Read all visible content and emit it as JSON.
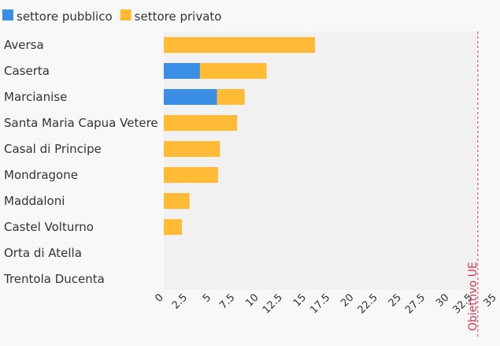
{
  "chart_data": {
    "type": "bar",
    "stacked": true,
    "orientation": "horizontal",
    "categories": [
      "Aversa",
      "Caserta",
      "Marcianise",
      "Santa Maria Capua Vetere",
      "Casal di Principe",
      "Mondragone",
      "Maddaloni",
      "Castel Volturno",
      "Orta di Atella",
      "Trentola Ducenta"
    ],
    "series": [
      {
        "name": "settore pubblico",
        "color": "#3a8ee6",
        "values": [
          0,
          3.8,
          5.6,
          0,
          0,
          0,
          0,
          0,
          0,
          0
        ]
      },
      {
        "name": "settore privato",
        "color": "#ffbb36",
        "values": [
          15.9,
          7.0,
          2.9,
          7.7,
          5.9,
          5.7,
          2.7,
          1.9,
          0,
          0
        ]
      }
    ],
    "xlim": [
      0,
      35
    ],
    "xticks": [
      "0",
      "2.5",
      "5",
      "7.5",
      "10",
      "12.5",
      "15",
      "17.5",
      "20",
      "22.5",
      "25",
      "27.5",
      "30",
      "32.5",
      "35"
    ],
    "legend_position": "top-left",
    "reference_line": {
      "label": "Obiettivo UE",
      "value": 33.0,
      "color": "#e0344a"
    }
  }
}
